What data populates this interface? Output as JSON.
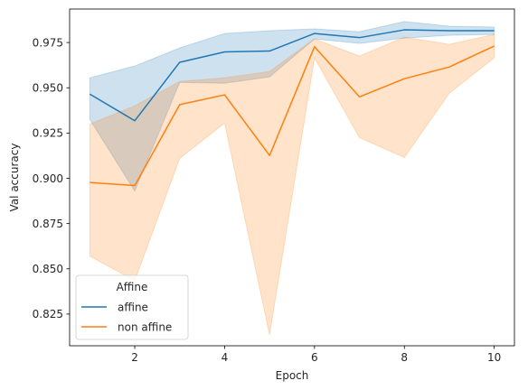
{
  "chart_data": {
    "type": "line",
    "xlabel": "Epoch",
    "ylabel": "Val accuracy",
    "xlim": [
      0.55,
      10.45
    ],
    "ylim": [
      0.8075,
      0.9935
    ],
    "xticks": [
      2,
      4,
      6,
      8,
      10
    ],
    "yticks": [
      0.825,
      0.85,
      0.875,
      0.9,
      0.925,
      0.95,
      0.975
    ],
    "xtick_labels": [
      "2",
      "4",
      "6",
      "8",
      "10"
    ],
    "ytick_labels": [
      "0.825",
      "0.850",
      "0.875",
      "0.900",
      "0.925",
      "0.950",
      "0.975"
    ],
    "grid": false,
    "legend": {
      "title": "Affine",
      "placement": "lower-left"
    },
    "x": [
      1,
      2,
      3,
      4,
      5,
      6,
      7,
      8,
      9,
      10
    ],
    "series": [
      {
        "name": "affine",
        "color": "#1f77b4",
        "values": [
          0.9465,
          0.9318,
          0.9641,
          0.9698,
          0.9703,
          0.98,
          0.9777,
          0.982,
          0.9815,
          0.9815
        ],
        "lower": [
          0.9325,
          0.893,
          0.953,
          0.9525,
          0.956,
          0.977,
          0.9745,
          0.9775,
          0.979,
          0.9795
        ],
        "upper": [
          0.9555,
          0.962,
          0.972,
          0.98,
          0.9815,
          0.9825,
          0.981,
          0.9866,
          0.984,
          0.9835
        ]
      },
      {
        "name": "non affine",
        "color": "#ff7f0e",
        "values": [
          0.8977,
          0.896,
          0.9407,
          0.9461,
          0.9126,
          0.9727,
          0.945,
          0.955,
          0.9615,
          0.9731
        ],
        "lower": [
          0.857,
          0.8435,
          0.911,
          0.9305,
          0.8135,
          0.9665,
          0.9225,
          0.9115,
          0.947,
          0.9665
        ],
        "upper": [
          0.93,
          0.94,
          0.9535,
          0.9555,
          0.959,
          0.977,
          0.9675,
          0.978,
          0.974,
          0.9795
        ]
      }
    ]
  }
}
